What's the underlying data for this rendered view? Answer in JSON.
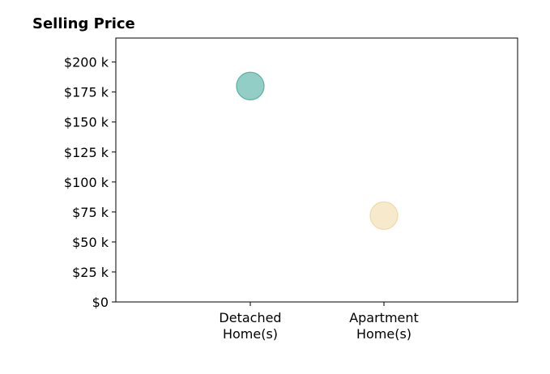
{
  "chart_data": {
    "type": "scatter",
    "title": "Selling Price",
    "xlabel": "",
    "ylabel": "",
    "categories": [
      [
        "Detached",
        "Home(s)"
      ],
      [
        "Apartment",
        "Home(s)"
      ]
    ],
    "values": [
      180000,
      72000
    ],
    "point_colors": [
      "#7fc6bb",
      "#f6e6c3"
    ],
    "point_edge_colors": [
      "#5db0a3",
      "#f0d9a8"
    ],
    "ylim": [
      0,
      220000
    ],
    "yticks": [
      0,
      25000,
      50000,
      75000,
      100000,
      125000,
      150000,
      175000,
      200000
    ],
    "ytick_labels": [
      "$0",
      "$25 k",
      "$50 k",
      "$75 k",
      "$100 k",
      "$125 k",
      "$150 k",
      "$175 k",
      "$200 k"
    ],
    "grid": false,
    "legend": "none"
  }
}
